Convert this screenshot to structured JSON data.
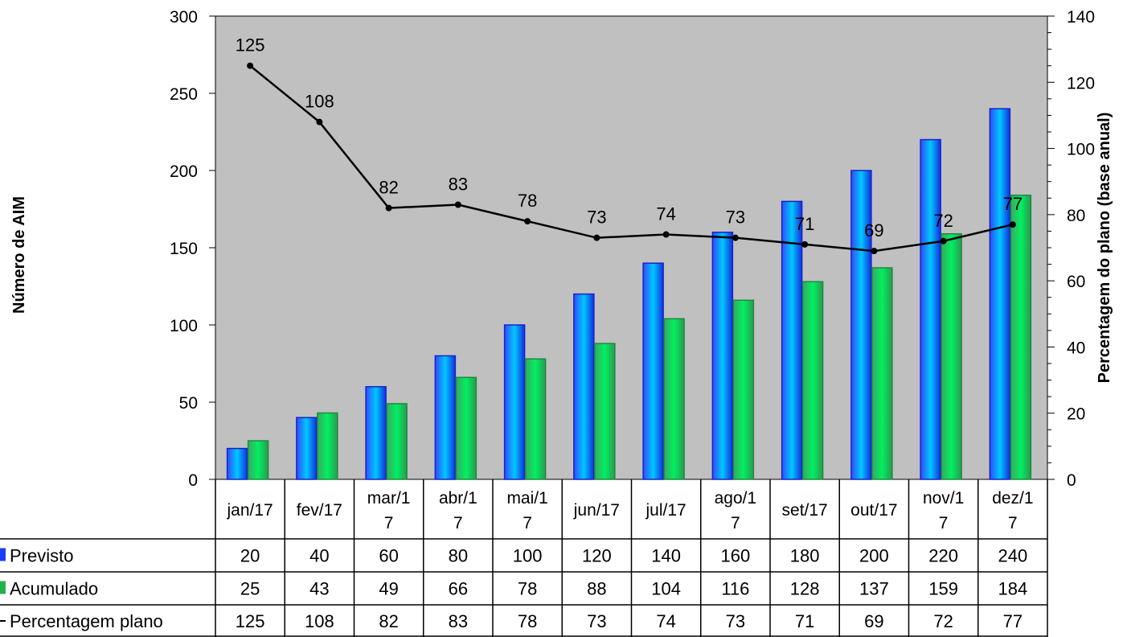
{
  "chart_data": {
    "type": "bar",
    "categories": [
      "jan/17",
      "fev/17",
      "mar/17",
      "abr/17",
      "mai/17",
      "jun/17",
      "jul/17",
      "ago/17",
      "set/17",
      "out/17",
      "nov/17",
      "dez/17"
    ],
    "category_lines": [
      [
        "jan/17"
      ],
      [
        "fev/17"
      ],
      [
        "mar/1",
        "7"
      ],
      [
        "abr/1",
        "7"
      ],
      [
        "mai/1",
        "7"
      ],
      [
        "jun/17"
      ],
      [
        "jul/17"
      ],
      [
        "ago/1",
        "7"
      ],
      [
        "set/17"
      ],
      [
        "out/17"
      ],
      [
        "nov/1",
        "7"
      ],
      [
        "dez/1",
        "7"
      ]
    ],
    "series": [
      {
        "name": "Previsto",
        "kind": "bar",
        "axis": "left",
        "color": "#1a3cff",
        "values": [
          20,
          40,
          60,
          80,
          100,
          120,
          140,
          160,
          180,
          200,
          220,
          240
        ]
      },
      {
        "name": "Acumulado",
        "kind": "bar",
        "axis": "left",
        "color": "#22b24c",
        "values": [
          25,
          43,
          49,
          66,
          78,
          88,
          104,
          116,
          128,
          137,
          159,
          184
        ]
      },
      {
        "name": "Percentagem plano",
        "kind": "line",
        "axis": "right",
        "color": "#000000",
        "values": [
          125,
          108,
          82,
          83,
          78,
          73,
          74,
          73,
          71,
          69,
          72,
          77
        ]
      }
    ],
    "ylabel": "Número de AIM",
    "y2label": "Percentagem do plano (base anual)",
    "ylim": [
      0,
      300
    ],
    "y2lim": [
      0,
      140
    ],
    "yticks": [
      0,
      50,
      100,
      150,
      200,
      250,
      300
    ],
    "y2ticks": [
      0,
      20,
      40,
      60,
      80,
      100,
      120,
      140
    ],
    "plot_background": "#c0c0c0",
    "data_table": true
  }
}
